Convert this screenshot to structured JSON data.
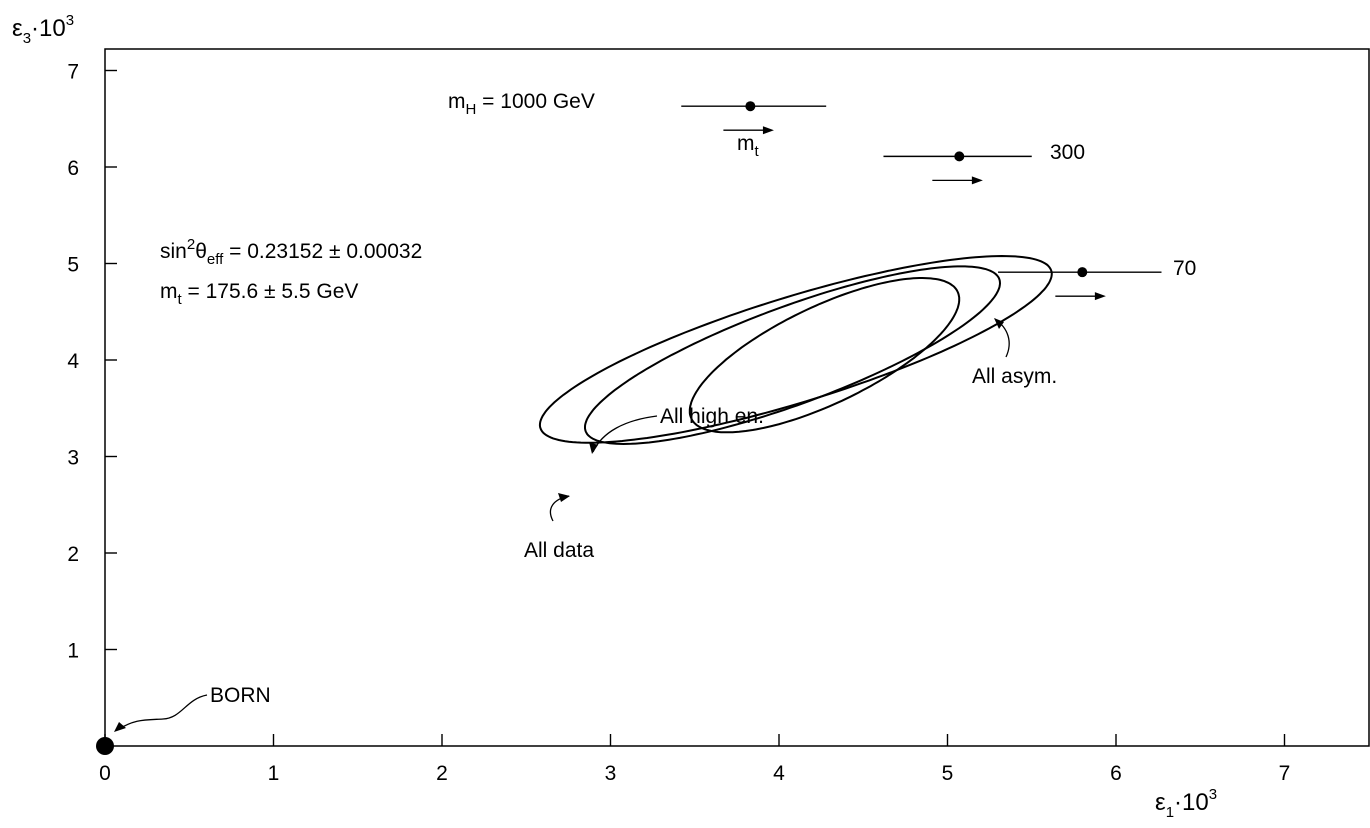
{
  "chart_data": {
    "type": "scatter",
    "title": "",
    "xlabel": {
      "base": "ε",
      "sub": "1",
      "mid": "·10",
      "sup": "3"
    },
    "ylabel": {
      "base": "ε",
      "sub": "3",
      "mid": "·10",
      "sup": "3"
    },
    "xlim": [
      0,
      7.5
    ],
    "ylim": [
      0,
      7.2
    ],
    "xticks": [
      0,
      1,
      2,
      3,
      4,
      5,
      6,
      7
    ],
    "yticks": [
      1,
      2,
      3,
      4,
      5,
      6,
      7
    ],
    "grid": false,
    "born": {
      "label": "BORN",
      "x": 0,
      "y": 0
    },
    "mh_points": [
      {
        "label_prefix": "m",
        "label_sub": "H",
        "label_suffix": " = 1000 GeV",
        "x": 3.83,
        "y": 6.63,
        "x_low": 3.42,
        "x_high": 4.28,
        "arrow_from": 3.67,
        "arrow_to": 3.97
      },
      {
        "label_prefix": "",
        "label_sub": "",
        "label_suffix": "300",
        "x": 5.07,
        "y": 6.11,
        "x_low": 4.62,
        "x_high": 5.5,
        "arrow_from": 4.91,
        "arrow_to": 5.21
      },
      {
        "label_prefix": "",
        "label_sub": "",
        "label_suffix": "70",
        "x": 5.8,
        "y": 4.91,
        "x_low": 5.3,
        "x_high": 6.27,
        "arrow_from": 5.64,
        "arrow_to": 5.94
      }
    ],
    "mt_arrow_label": {
      "base": "m",
      "sub": "t"
    },
    "ellipses": [
      {
        "label": "All data",
        "cx": 4.1,
        "cy": 4.11,
        "rx": 1.73,
        "ry": 0.5,
        "angle_deg": 30
      },
      {
        "label": "All high en.",
        "cx": 4.08,
        "cy": 4.05,
        "rx": 1.47,
        "ry": 0.45,
        "angle_deg": 35
      },
      {
        "label": "All asym.",
        "cx": 4.27,
        "cy": 4.05,
        "rx": 1.05,
        "ry": 0.42,
        "angle_deg": 45
      }
    ],
    "annotations": {
      "sin2": {
        "base": "sin",
        "sup": "2",
        "theta": "θ",
        "sub": "eff",
        "rest": " = 0.23152 ± 0.00032"
      },
      "mt": {
        "base": "m",
        "sub": "t",
        "rest": " = 175.6 ± 5.5 GeV"
      }
    }
  }
}
